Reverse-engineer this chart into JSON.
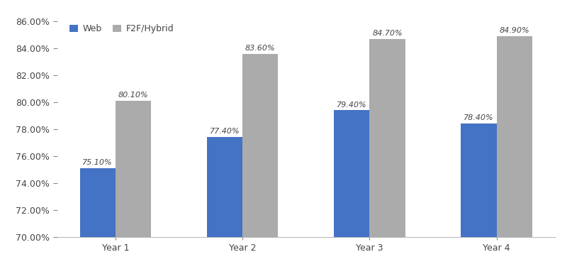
{
  "categories": [
    "Year 1",
    "Year 2",
    "Year 3",
    "Year 4"
  ],
  "web_values": [
    0.751,
    0.774,
    0.794,
    0.784
  ],
  "f2f_values": [
    0.801,
    0.836,
    0.847,
    0.849
  ],
  "web_labels": [
    "75.10%",
    "77.40%",
    "79.40%",
    "78.40%"
  ],
  "f2f_labels": [
    "80.10%",
    "83.60%",
    "84.70%",
    "84.90%"
  ],
  "web_color": "#4472C4",
  "f2f_color": "#ABABAB",
  "ylim_min": 0.7,
  "ylim_max": 0.86,
  "yticks": [
    0.7,
    0.72,
    0.74,
    0.76,
    0.78,
    0.8,
    0.82,
    0.84,
    0.86
  ],
  "legend_web": "Web",
  "legend_f2f": "F2F/Hybrid",
  "bar_width": 0.28,
  "label_fontsize": 8.0,
  "tick_fontsize": 9,
  "legend_fontsize": 9,
  "background_color": "#ffffff"
}
